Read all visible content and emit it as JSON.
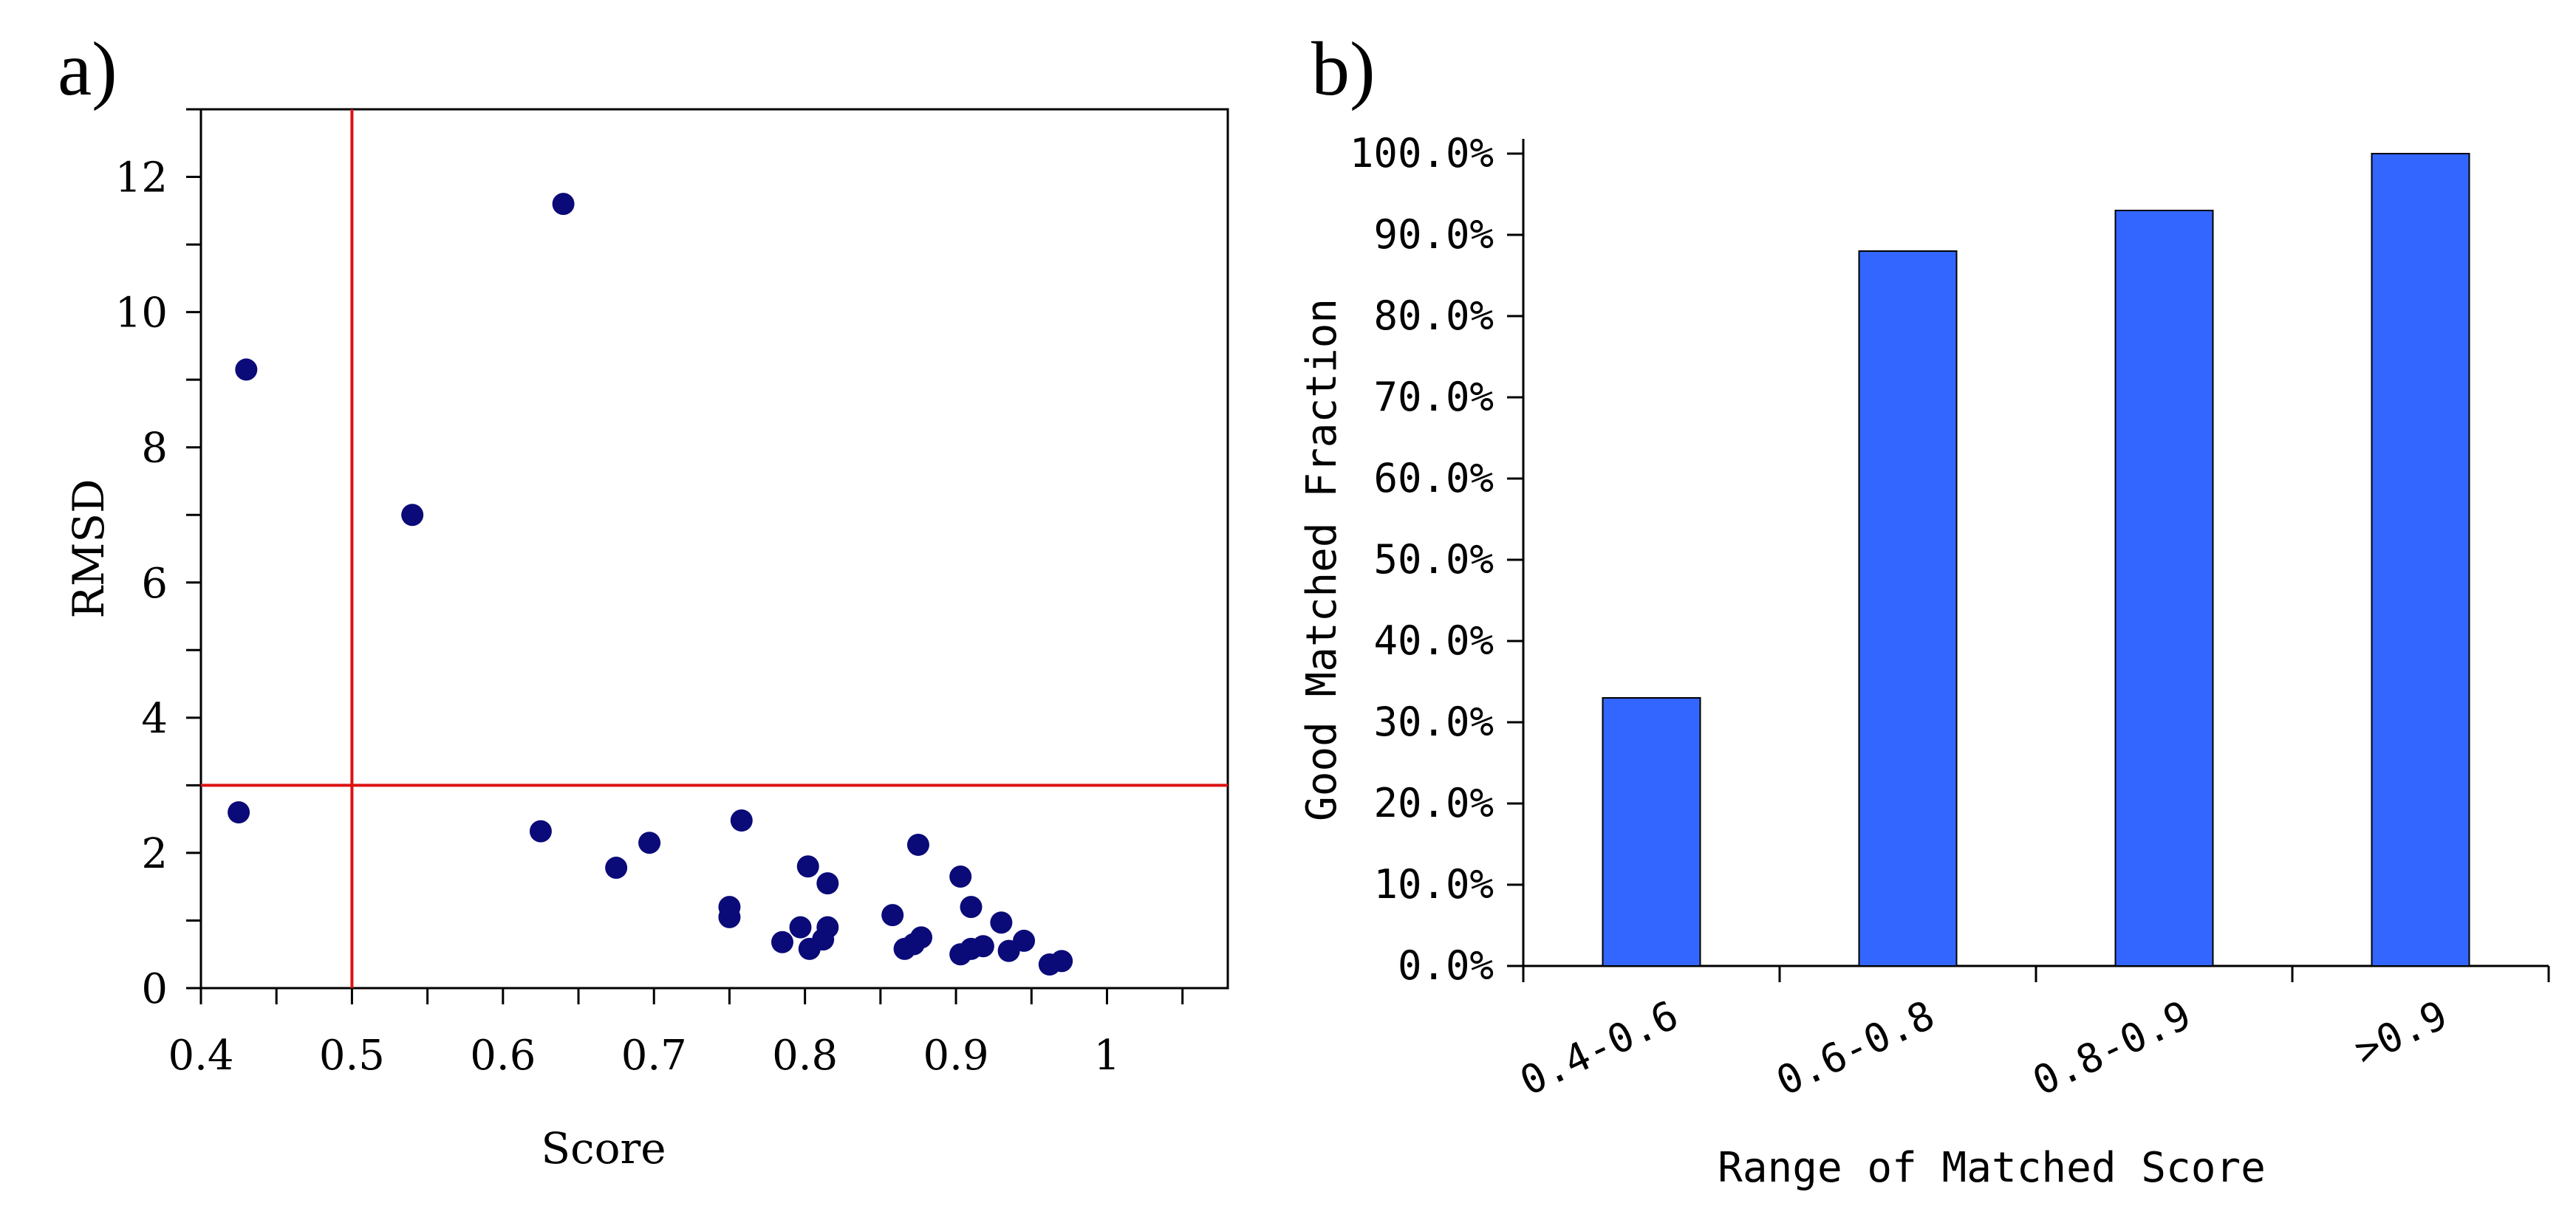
{
  "panels": {
    "a": {
      "label": "a)"
    },
    "b": {
      "label": "b)"
    }
  },
  "colors": {
    "scatter_point": "#0a0a78",
    "bar_fill": "#3366ff",
    "threshold_line": "#dd1111",
    "axis": "#000000"
  },
  "chart_data": [
    {
      "type": "scatter",
      "panel": "a",
      "title": "",
      "xlabel": "Score",
      "ylabel": "RMSD",
      "xlim": [
        0.4,
        1.08
      ],
      "ylim": [
        0,
        13
      ],
      "xticks": [
        0.4,
        0.5,
        0.6,
        0.7,
        0.8,
        0.9,
        1.0
      ],
      "xtick_labels": [
        "0.4",
        "0.5",
        "0.6",
        "0.7",
        "0.8",
        "0.9",
        "1"
      ],
      "yticks": [
        0,
        2,
        4,
        6,
        8,
        10,
        12
      ],
      "ytick_labels": [
        "0",
        "2",
        "4",
        "6",
        "8",
        "10",
        "12"
      ],
      "threshold_x": 0.5,
      "threshold_y": 3,
      "grid": false,
      "points": [
        {
          "x": 0.425,
          "y": 2.6
        },
        {
          "x": 0.43,
          "y": 9.15
        },
        {
          "x": 0.54,
          "y": 7.0
        },
        {
          "x": 0.625,
          "y": 2.32
        },
        {
          "x": 0.64,
          "y": 11.6
        },
        {
          "x": 0.675,
          "y": 1.78
        },
        {
          "x": 0.697,
          "y": 2.15
        },
        {
          "x": 0.75,
          "y": 1.2
        },
        {
          "x": 0.75,
          "y": 1.05
        },
        {
          "x": 0.758,
          "y": 2.48
        },
        {
          "x": 0.785,
          "y": 0.68
        },
        {
          "x": 0.797,
          "y": 0.9
        },
        {
          "x": 0.802,
          "y": 1.8
        },
        {
          "x": 0.803,
          "y": 0.58
        },
        {
          "x": 0.812,
          "y": 0.72
        },
        {
          "x": 0.815,
          "y": 1.55
        },
        {
          "x": 0.815,
          "y": 0.9
        },
        {
          "x": 0.858,
          "y": 1.08
        },
        {
          "x": 0.866,
          "y": 0.58
        },
        {
          "x": 0.872,
          "y": 0.65
        },
        {
          "x": 0.875,
          "y": 2.12
        },
        {
          "x": 0.877,
          "y": 0.75
        },
        {
          "x": 0.903,
          "y": 1.65
        },
        {
          "x": 0.903,
          "y": 0.5
        },
        {
          "x": 0.91,
          "y": 1.2
        },
        {
          "x": 0.91,
          "y": 0.58
        },
        {
          "x": 0.918,
          "y": 0.62
        },
        {
          "x": 0.93,
          "y": 0.97
        },
        {
          "x": 0.935,
          "y": 0.55
        },
        {
          "x": 0.945,
          "y": 0.7
        },
        {
          "x": 0.962,
          "y": 0.35
        },
        {
          "x": 0.97,
          "y": 0.4
        }
      ]
    },
    {
      "type": "bar",
      "panel": "b",
      "title": "",
      "xlabel": "Range of Matched Score",
      "ylabel": "Good Matched Fraction",
      "categories": [
        "0.4-0.6",
        "0.6-0.8",
        "0.8-0.9",
        ">0.9"
      ],
      "values": [
        33.0,
        88.0,
        93.0,
        100.0
      ],
      "ylim": [
        0,
        100
      ],
      "yticks": [
        0,
        10,
        20,
        30,
        40,
        50,
        60,
        70,
        80,
        90,
        100
      ],
      "ytick_labels": [
        "0.0%",
        "10.0%",
        "20.0%",
        "30.0%",
        "40.0%",
        "50.0%",
        "60.0%",
        "70.0%",
        "80.0%",
        "90.0%",
        "100.0%"
      ],
      "grid": false
    }
  ]
}
